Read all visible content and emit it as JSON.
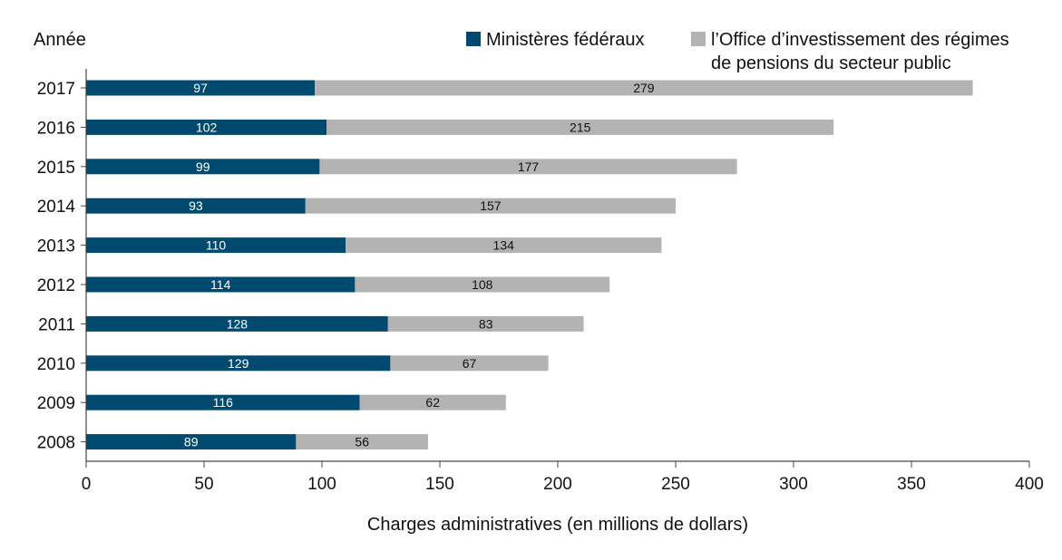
{
  "chart_data": {
    "type": "bar",
    "orientation": "horizontal",
    "stacked": true,
    "ylabel": "Année",
    "xlabel": "Charges administratives (en millions de dollars)",
    "categories": [
      "2017",
      "2016",
      "2015",
      "2014",
      "2013",
      "2012",
      "2011",
      "2010",
      "2009",
      "2008"
    ],
    "series": [
      {
        "name": "Ministères fédéraux",
        "color": "#004a70",
        "label_color": "#ffffff",
        "values": [
          97,
          102,
          99,
          93,
          110,
          114,
          128,
          129,
          116,
          89
        ]
      },
      {
        "name": "l’Office d’investissement des régimes de pensions du secteur public",
        "color": "#b3b3b3",
        "label_color": "#111111",
        "values": [
          279,
          215,
          177,
          157,
          134,
          108,
          83,
          67,
          62,
          56
        ]
      }
    ],
    "legend_lines": [
      "l’Office d’investissement des régimes",
      "de pensions du secteur public"
    ],
    "xlim": [
      0,
      400
    ],
    "xticks": [
      0,
      50,
      100,
      150,
      200,
      250,
      300,
      350,
      400
    ],
    "grid": false,
    "legend_position": "top-right"
  }
}
